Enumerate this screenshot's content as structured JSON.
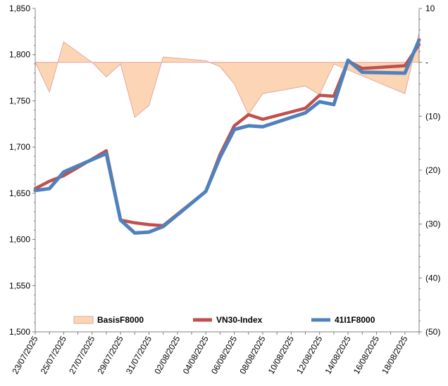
{
  "chart_data": {
    "type": "line",
    "title": "",
    "xlabel": "",
    "ylabel_left": "",
    "ylabel_right": "",
    "x": [
      "23/07/2025",
      "24/07/2025",
      "25/07/2025",
      "28/07/2025",
      "29/07/2025",
      "30/07/2025",
      "31/07/2025",
      "01/08/2025",
      "04/08/2025",
      "05/08/2025",
      "06/08/2025",
      "07/08/2025",
      "08/08/2025",
      "11/08/2025",
      "12/08/2025",
      "13/08/2025",
      "14/08/2025",
      "15/08/2025",
      "18/08/2025",
      "19/08/2025"
    ],
    "xtick_labels": [
      "23/07/2025",
      "25/07/2025",
      "27/07/2025",
      "29/07/2025",
      "31/07/2025",
      "02/08/2025",
      "04/08/2025",
      "06/08/2025",
      "08/08/2025",
      "10/08/2025",
      "12/08/2025",
      "14/08/2025",
      "16/08/2025",
      "18/08/2025"
    ],
    "y_left": {
      "min": 1500,
      "max": 1850,
      "step": 50,
      "tick_labels": [
        "1,500",
        "1,550",
        "1,600",
        "1,650",
        "1,700",
        "1,750",
        "1,800",
        "1,850"
      ]
    },
    "y_right": {
      "min": -50,
      "max": 10,
      "step": 10,
      "tick_labels": [
        "(50)",
        "(40)",
        "(30)",
        "(20)",
        "(10)",
        "-",
        "10"
      ]
    },
    "series": [
      {
        "name": "BasisF8000",
        "kind": "area",
        "axis": "right",
        "color_fill": "#fcd5b4",
        "color_line": "#e3a6a0",
        "points": [
          [
            "23/07/2025",
            0.0
          ],
          [
            "24/07/2025",
            -5.5
          ],
          [
            "25/07/2025",
            3.8
          ],
          [
            "27/07/2025",
            0.0
          ],
          [
            "28/07/2025",
            -2.7
          ],
          [
            "29/07/2025",
            -0.3
          ],
          [
            "30/07/2025",
            -10.2
          ],
          [
            "31/07/2025",
            -8.0
          ],
          [
            "01/08/2025",
            1.0
          ],
          [
            "04/08/2025",
            0.3
          ],
          [
            "05/08/2025",
            -0.8
          ],
          [
            "06/08/2025",
            -4.0
          ],
          [
            "07/08/2025",
            -9.7
          ],
          [
            "08/08/2025",
            -5.8
          ],
          [
            "11/08/2025",
            -4.4
          ],
          [
            "12/08/2025",
            -6.0
          ],
          [
            "13/08/2025",
            -0.3
          ],
          [
            "15/08/2025",
            -2.5
          ],
          [
            "18/08/2025",
            -5.8
          ],
          [
            "19/08/2025",
            5.5
          ]
        ]
      },
      {
        "name": "VN30-Index",
        "kind": "line",
        "axis": "left",
        "color": "#c0504d",
        "points": [
          [
            "23/07/2025",
            1655
          ],
          [
            "24/07/2025",
            1663
          ],
          [
            "25/07/2025",
            1669
          ],
          [
            "28/07/2025",
            1696
          ],
          [
            "29/07/2025",
            1621
          ],
          [
            "30/07/2025",
            1618
          ],
          [
            "31/07/2025",
            1616
          ],
          [
            "01/08/2025",
            1615
          ],
          [
            "04/08/2025",
            1652
          ],
          [
            "05/08/2025",
            1692
          ],
          [
            "06/08/2025",
            1723
          ],
          [
            "07/08/2025",
            1735
          ],
          [
            "08/08/2025",
            1730
          ],
          [
            "11/08/2025",
            1742
          ],
          [
            "12/08/2025",
            1756
          ],
          [
            "13/08/2025",
            1755
          ],
          [
            "14/08/2025",
            1793
          ],
          [
            "15/08/2025",
            1785
          ],
          [
            "18/08/2025",
            1788
          ],
          [
            "19/08/2025",
            1811
          ]
        ]
      },
      {
        "name": "41I1F8000",
        "kind": "line",
        "axis": "left",
        "color": "#4f81bd",
        "points": [
          [
            "23/07/2025",
            1653
          ],
          [
            "24/07/2025",
            1655
          ],
          [
            "25/07/2025",
            1673
          ],
          [
            "28/07/2025",
            1693
          ],
          [
            "29/07/2025",
            1621
          ],
          [
            "30/07/2025",
            1607
          ],
          [
            "31/07/2025",
            1608
          ],
          [
            "01/08/2025",
            1614
          ],
          [
            "04/08/2025",
            1652
          ],
          [
            "05/08/2025",
            1689
          ],
          [
            "06/08/2025",
            1719
          ],
          [
            "07/08/2025",
            1723
          ],
          [
            "08/08/2025",
            1722
          ],
          [
            "11/08/2025",
            1737
          ],
          [
            "12/08/2025",
            1749
          ],
          [
            "13/08/2025",
            1746
          ],
          [
            "14/08/2025",
            1794
          ],
          [
            "15/08/2025",
            1781
          ],
          [
            "18/08/2025",
            1780
          ],
          [
            "19/08/2025",
            1816
          ]
        ]
      }
    ],
    "legend": {
      "placement": "bottom-inside",
      "entries": [
        "BasisF8000",
        "VN30-Index",
        "41I1F8000"
      ]
    },
    "grid": false
  }
}
